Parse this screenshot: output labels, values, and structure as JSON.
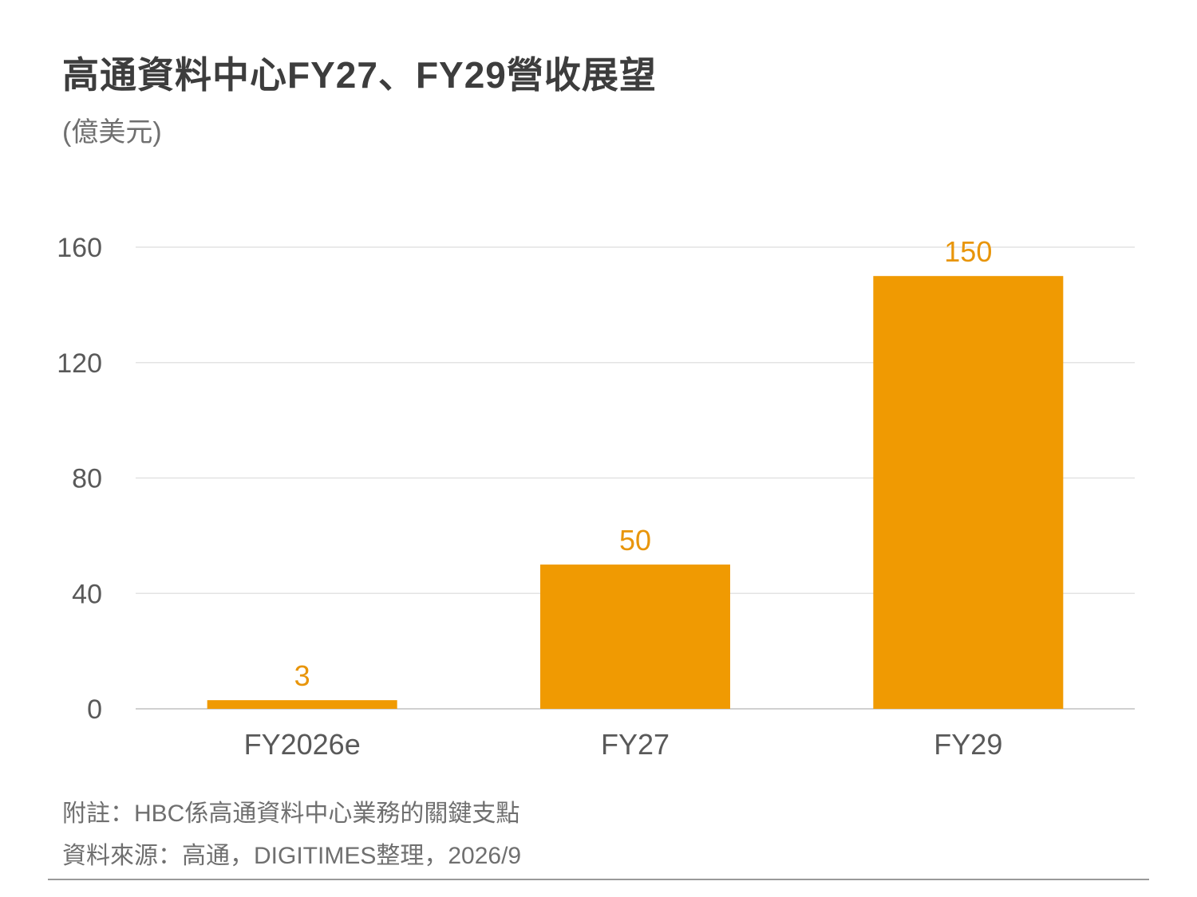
{
  "header": {
    "title": "高通資料中心FY27、FY29營收展望",
    "unit": "(億美元)"
  },
  "footer": {
    "note": "附註：HBC係高通資料中心業務的關鍵支點",
    "source": "資料來源：高通，DIGITIMES整理，2026/9"
  },
  "colors": {
    "bar": "#f09a02",
    "label": "#e8950a",
    "axis_text": "#595959",
    "grid": "#e3e3e3"
  },
  "chart_data": {
    "type": "bar",
    "title": "高通資料中心FY27、FY29營收展望",
    "subtitle": "(億美元)",
    "categories": [
      "FY2026e",
      "FY27",
      "FY29"
    ],
    "values": [
      3,
      50,
      150
    ],
    "data_labels": [
      "3",
      "50",
      "150"
    ],
    "ylim": [
      0,
      160
    ],
    "yticks": [
      0,
      40,
      80,
      120,
      160
    ],
    "ytick_labels": [
      "0",
      "40",
      "80",
      "120",
      "160"
    ],
    "grid": true,
    "legend": "none"
  }
}
